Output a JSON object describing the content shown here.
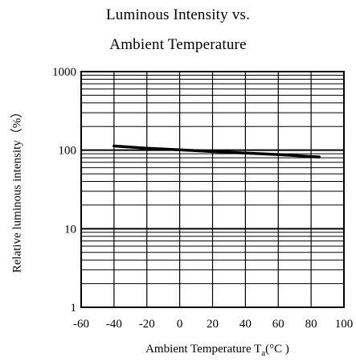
{
  "chart_data": {
    "type": "line",
    "title_line1": "Luminous Intensity vs.",
    "title_line2": "Ambient Temperature",
    "xlabel": "Ambient Temperature T",
    "xlabel_subscript": "a",
    "xlabel_unit": "(°C )",
    "ylabel": "Relative luminous intensity（%）",
    "x_ticks": [
      "-60",
      "-40",
      "-20",
      "0",
      "20",
      "40",
      "60",
      "80",
      "100"
    ],
    "y_ticks": [
      "1000",
      "100",
      "10",
      "1"
    ],
    "xlim": [
      -60,
      100
    ],
    "ylim": [
      1,
      1000
    ],
    "y_scale": "log",
    "grid": true,
    "series": [
      {
        "x": [
          -40,
          -20,
          0,
          20,
          40,
          60,
          80,
          85
        ],
        "y": [
          113,
          106,
          101,
          96,
          92,
          88,
          83,
          82
        ],
        "color": "#000000"
      }
    ]
  }
}
